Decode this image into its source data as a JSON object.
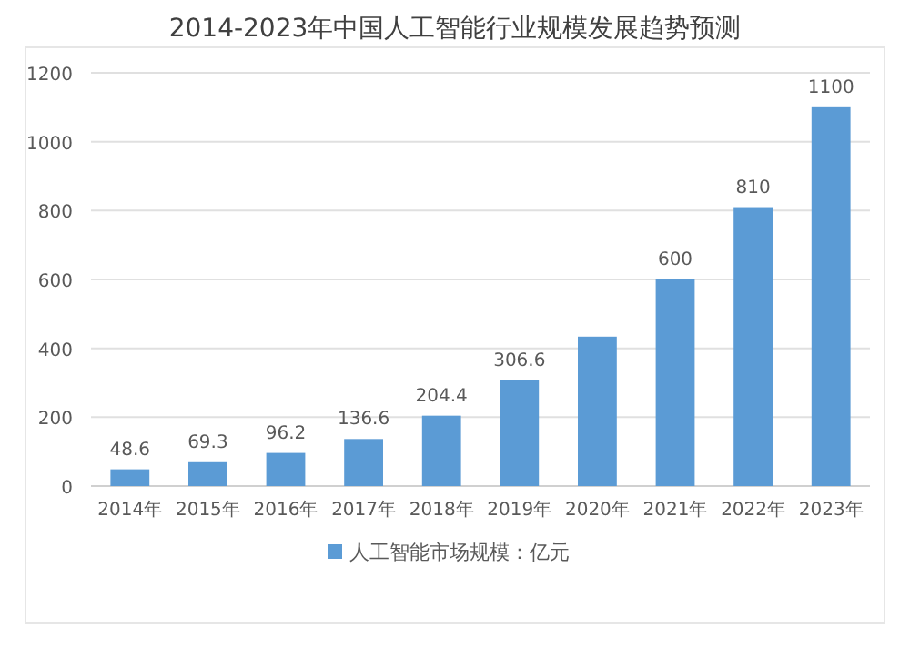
{
  "chart_data": {
    "type": "bar",
    "title": "2014-2023年中国人工智能行业规模发展趋势预测",
    "categories": [
      "2014年",
      "2015年",
      "2016年",
      "2017年",
      "2018年",
      "2019年",
      "2020年",
      "2021年",
      "2022年",
      "2023年"
    ],
    "series": [
      {
        "name": "人工智能市场规模：亿元",
        "color": "#5b9bd5",
        "values": [
          48.6,
          69.3,
          96.2,
          136.6,
          204.4,
          306.6,
          434,
          600,
          810,
          1100
        ],
        "value_labels": [
          "48.6",
          "69.3",
          "96.2",
          "136.6",
          "204.4",
          "306.6",
          null,
          "600",
          "810",
          "1100"
        ]
      }
    ],
    "ylim": [
      0,
      1200
    ],
    "yticks": [
      0,
      200,
      400,
      600,
      800,
      1000,
      1200
    ],
    "grid": "y",
    "legend": "bottom"
  }
}
